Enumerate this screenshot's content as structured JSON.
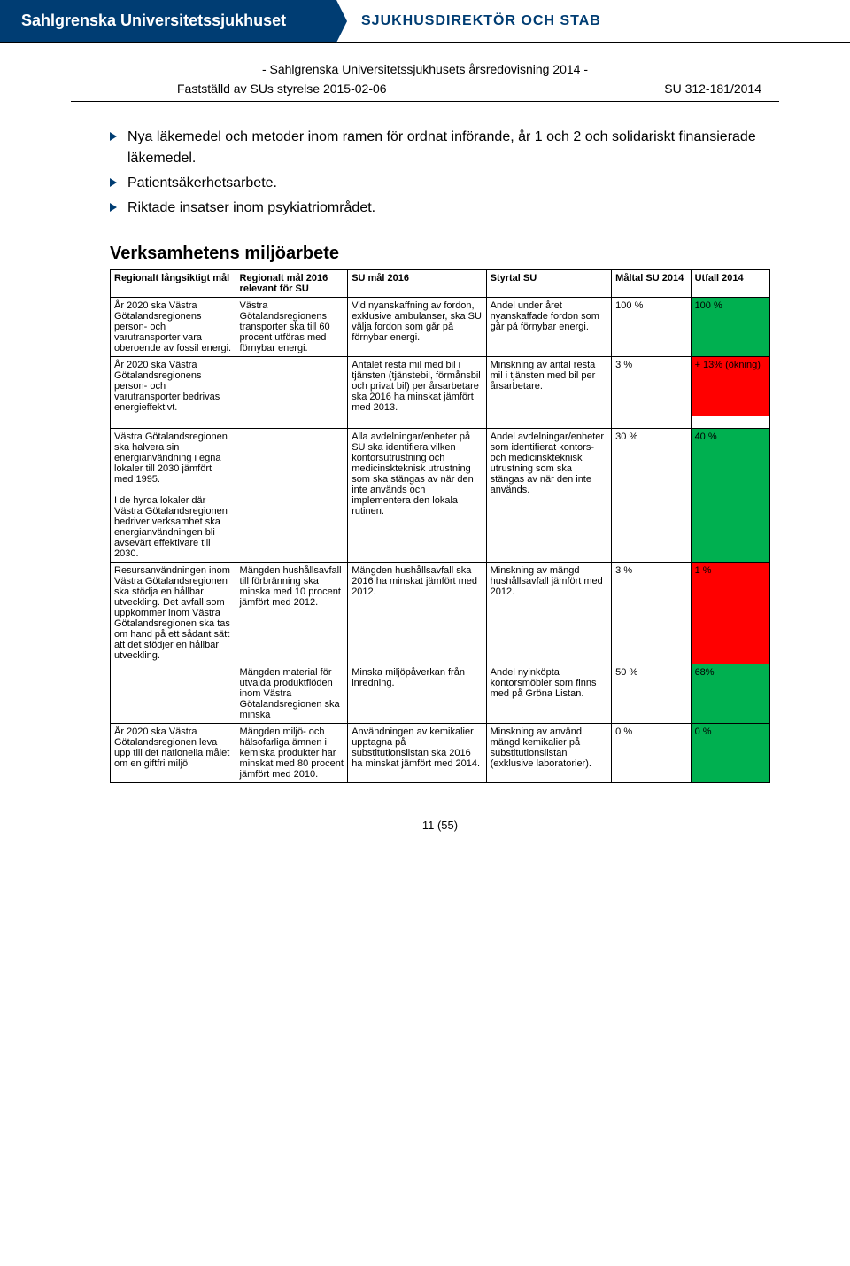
{
  "header": {
    "org": "Sahlgrenska Universitetssjukhuset",
    "dept": "SJUKHUSDIREKTÖR OCH STAB",
    "doc_title": "- Sahlgrenska Universitetssjukhusets årsredovisning 2014 -",
    "approved": "Fastställd av SUs styrelse 2015-02-06",
    "ref": "SU 312-181/2014"
  },
  "bullets": [
    "Nya läkemedel och metoder inom ramen för ordnat införande, år 1 och 2 och solidariskt finansierade läkemedel.",
    "Patientsäkerhetsarbete.",
    "Riktade insatser inom psykiatriområdet."
  ],
  "section_title": "Verksamhetens miljöarbete",
  "table_headers": {
    "c1": "Regionalt långsiktigt mål",
    "c2": "Regionalt mål 2016 relevant för SU",
    "c3": "SU mål 2016",
    "c4": "Styrtal SU",
    "c5": "Måltal SU 2014",
    "c6": "Utfall 2014"
  },
  "rows": [
    {
      "c1": "År 2020 ska Västra Götalandsregionens person- och varutransporter vara oberoende av fossil energi.",
      "c2": "Västra Götalandsregionens transporter ska till 60 procent utföras med förnybar energi.",
      "c3": "Vid nyanskaffning av fordon, exklusive ambulanser, ska SU välja fordon som går på förnybar energi.",
      "c4": "Andel under året nyanskaffade fordon som går på förnybar energi.",
      "c5": "100 %",
      "c6": "100 %",
      "c6color": "green"
    },
    {
      "c1": "År 2020 ska Västra Götalandsregionens person- och varutransporter bedrivas energieffektivt.",
      "c2": "",
      "c3": "Antalet resta mil med bil i tjänsten (tjänstebil, förmånsbil och privat bil) per årsarbetare ska 2016 ha minskat jämfört med 2013.",
      "c4": "Minskning av antal resta mil i tjänsten med bil per årsarbetare.",
      "c5": "3 %",
      "c6": "+ 13% (ökning)",
      "c6color": "red"
    }
  ],
  "rows2": [
    {
      "c1": "Västra Götalandsregionen ska halvera sin energianvändning i egna lokaler till 2030 jämfört med 1995.\n\nI de hyrda lokaler där Västra Götalandsregionen bedriver verksamhet ska energianvändningen bli avsevärt effektivare till 2030.",
      "c2": "",
      "c3": "Alla avdelningar/enheter på SU ska identifiera vilken kontorsutrustning och medicinskteknisk utrustning som ska stängas av när den inte används och implementera den lokala rutinen.",
      "c4": "Andel avdelningar/enheter som identifierat kontors- och medicinskteknisk utrustning som ska stängas av när den inte används.",
      "c5": "30 %",
      "c6": "40 %",
      "c6color": "green"
    },
    {
      "c1": "Resursanvändningen inom Västra Götalandsregionen ska stödja en hållbar utveckling. Det avfall som uppkommer inom Västra Götalandsregionen ska tas om hand på ett sådant sätt att det stödjer en hållbar utveckling.",
      "c2": "Mängden hushållsavfall till förbränning ska minska med 10 procent jämfört med 2012.",
      "c3": "Mängden hushållsavfall ska 2016 ha minskat jämfört med 2012.",
      "c4": "Minskning av mängd hushållsavfall jämfört med 2012.",
      "c5": "3 %",
      "c6": "1 %",
      "c6color": "red"
    },
    {
      "c1": "",
      "c2": "Mängden material för utvalda produktflöden inom Västra Götalandsregionen ska minska",
      "c3": "Minska miljöpåverkan från inredning.",
      "c4": "Andel nyinköpta kontorsmöbler som finns med på Gröna Listan.",
      "c5": "50 %",
      "c6": "68%",
      "c6color": "green"
    },
    {
      "c1": "År 2020 ska Västra Götalandsregionen leva upp till det nationella målet om en giftfri miljö",
      "c2": "Mängden miljö- och hälsofarliga ämnen i kemiska produkter har minskat med 80 procent jämfört med 2010.",
      "c3": "Användningen av kemikalier upptagna på substitutionslistan ska 2016 ha minskat jämfört med 2014.",
      "c4": "Minskning av använd mängd kemikalier på substitutionslistan (exklusive laboratorier).",
      "c5": "0 %",
      "c6": "0 %",
      "c6color": "green"
    }
  ],
  "colors": {
    "green": "#00b050",
    "red": "#ff0000",
    "brand": "#003d73"
  },
  "page_num": "11 (55)"
}
